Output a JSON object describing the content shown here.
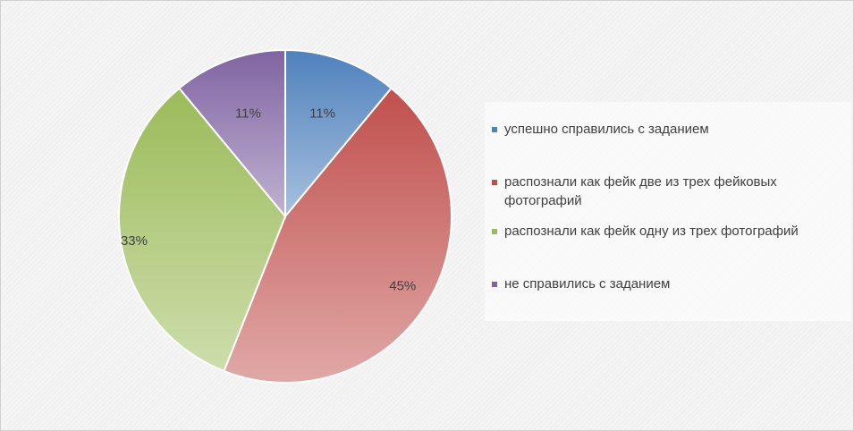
{
  "chart_data": {
    "type": "pie",
    "slices": [
      {
        "label": "успешно справились с заданием",
        "value": 11,
        "value_label": "11%",
        "color": "#4f81bd"
      },
      {
        "label": "распознали как фейк две из трех фейковых фотографий",
        "value": 45,
        "value_label": "45%",
        "color": "#c0504d"
      },
      {
        "label": "распознали как фейк одну из трех фотографий",
        "value": 33,
        "value_label": "33%",
        "color": "#9bbb59"
      },
      {
        "label": "не справились с заданием",
        "value": 11,
        "value_label": "11%",
        "color": "#8064a2"
      }
    ],
    "legend_placement": "right",
    "data_labels": "percent"
  }
}
